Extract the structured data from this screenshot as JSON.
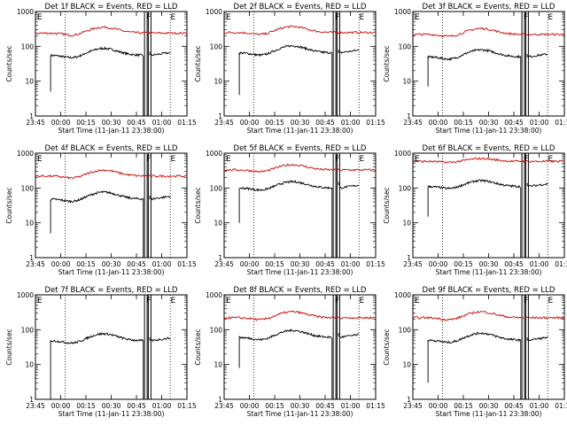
{
  "figure": {
    "xlabel": "Start Time (11-Jan-11 23:38:00)",
    "ylabel": "Counts/sec",
    "x_tick_labels": [
      "23:45",
      "00:00",
      "00:15",
      "00:30",
      "00:45",
      "01:00",
      "01:15"
    ],
    "y_tick_labels": [
      "1",
      "10",
      "100",
      "1000"
    ],
    "marker_letters": [
      "E",
      "F",
      "E"
    ],
    "colors": {
      "events": "#000000",
      "lld": "#cc0000",
      "axes": "#000000"
    }
  },
  "chart_data": [
    {
      "type": "line",
      "title": "Det 1f BLACK = Events, RED = LLD",
      "ylim": [
        1,
        1000
      ],
      "yscale": "log",
      "series": [
        {
          "name": "Events",
          "color": "#000000",
          "base": 55,
          "amp": 0.2,
          "start": 5,
          "drop": 1,
          "spike": 70
        },
        {
          "name": "LLD",
          "color": "#cc0000",
          "base": 240,
          "amp": 0.17
        }
      ]
    },
    {
      "type": "line",
      "title": "Det 2f BLACK = Events, RED = LLD",
      "ylim": [
        1,
        1000
      ],
      "yscale": "log",
      "series": [
        {
          "name": "Events",
          "color": "#000000",
          "base": 65,
          "amp": 0.2,
          "start": 4,
          "drop": 1,
          "spike": 80
        },
        {
          "name": "LLD",
          "color": "#cc0000",
          "base": 250,
          "amp": 0.17
        }
      ]
    },
    {
      "type": "line",
      "title": "Det 3f BLACK = Events, RED = LLD",
      "ylim": [
        1,
        1000
      ],
      "yscale": "log",
      "series": [
        {
          "name": "Events",
          "color": "#000000",
          "base": 50,
          "amp": 0.2,
          "start": 7,
          "drop": 1,
          "spike": 60
        },
        {
          "name": "LLD",
          "color": "#cc0000",
          "base": 220,
          "amp": 0.17
        }
      ]
    },
    {
      "type": "line",
      "title": "Det 4f BLACK = Events, RED = LLD",
      "ylim": [
        1,
        1000
      ],
      "yscale": "log",
      "series": [
        {
          "name": "Events",
          "color": "#000000",
          "base": 48,
          "amp": 0.2,
          "start": 5,
          "drop": 1,
          "spike": 60
        },
        {
          "name": "LLD",
          "color": "#cc0000",
          "base": 220,
          "amp": 0.17
        }
      ]
    },
    {
      "type": "line",
      "title": "Det 5f BLACK = Events, RED = LLD",
      "ylim": [
        1,
        1000
      ],
      "yscale": "log",
      "series": [
        {
          "name": "Events",
          "color": "#000000",
          "base": 100,
          "amp": 0.18,
          "start": 10,
          "drop": 1,
          "spike": 150
        },
        {
          "name": "LLD",
          "color": "#cc0000",
          "base": 330,
          "amp": 0.15
        }
      ]
    },
    {
      "type": "line",
      "title": "Det 6f BLACK = Events, RED = LLD",
      "ylim": [
        1,
        1000
      ],
      "yscale": "log",
      "series": [
        {
          "name": "Events",
          "color": "#000000",
          "base": 110,
          "amp": 0.17,
          "start": 15,
          "drop": 1,
          "spike": 140
        },
        {
          "name": "LLD",
          "color": "#cc0000",
          "base": 580,
          "amp": 0.08
        }
      ]
    },
    {
      "type": "line",
      "title": "Det 7f BLACK = Events, RED = LLD",
      "ylim": [
        1,
        1000
      ],
      "yscale": "log",
      "series": [
        {
          "name": "Events",
          "color": "#000000",
          "base": 48,
          "amp": 0.2,
          "start": 1,
          "drop": 1,
          "spike": 60
        }
      ]
    },
    {
      "type": "line",
      "title": "Det 8f BLACK = Events, RED = LLD",
      "ylim": [
        1,
        1000
      ],
      "yscale": "log",
      "series": [
        {
          "name": "Events",
          "color": "#000000",
          "base": 60,
          "amp": 0.2,
          "start": 8,
          "drop": 1,
          "spike": 80
        },
        {
          "name": "LLD",
          "color": "#cc0000",
          "base": 220,
          "amp": 0.17
        }
      ]
    },
    {
      "type": "line",
      "title": "Det 9f BLACK = Events, RED = LLD",
      "ylim": [
        1,
        1000
      ],
      "yscale": "log",
      "series": [
        {
          "name": "Events",
          "color": "#000000",
          "base": 50,
          "amp": 0.2,
          "start": 3,
          "drop": 1,
          "spike": 60
        },
        {
          "name": "LLD",
          "color": "#cc0000",
          "base": 220,
          "amp": 0.17
        }
      ]
    }
  ]
}
